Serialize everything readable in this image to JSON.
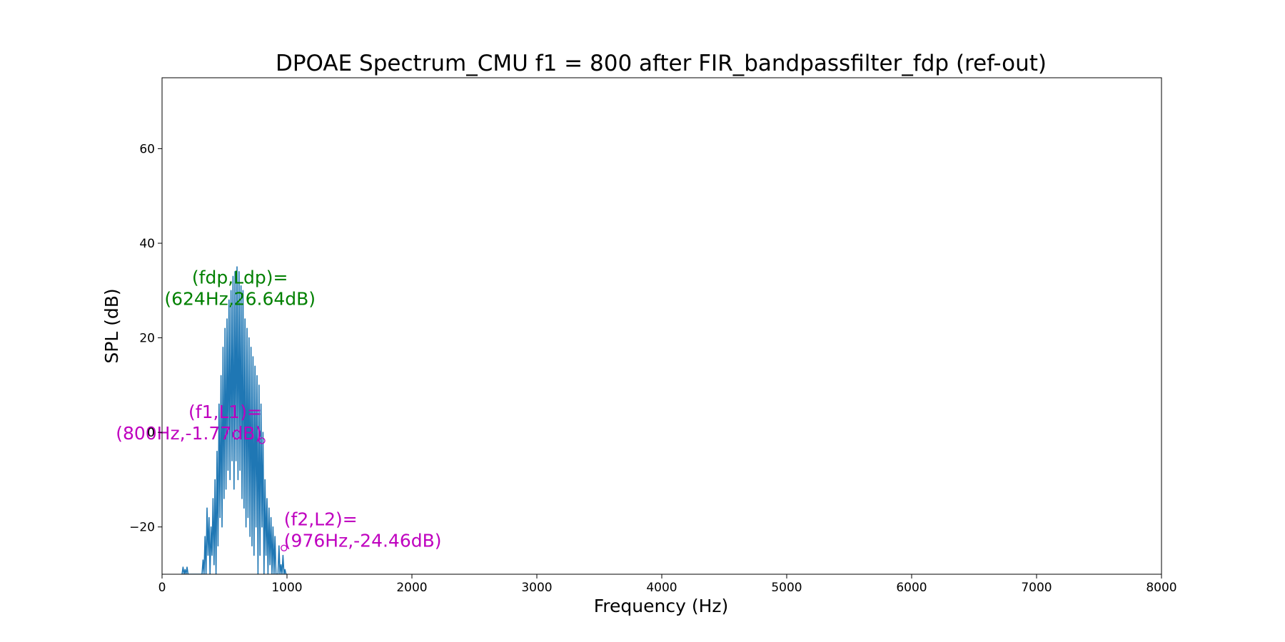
{
  "chart_data": {
    "type": "line",
    "title": "DPOAE Spectrum_CMU f1 = 800 after FIR_bandpassfilter_fdp (ref-out)",
    "xlabel": "Frequency (Hz)",
    "ylabel": "SPL (dB)",
    "xlim": [
      0,
      8000
    ],
    "ylim": [
      -30,
      75
    ],
    "xticks": [
      0,
      1000,
      2000,
      3000,
      4000,
      5000,
      6000,
      7000,
      8000
    ],
    "xtick_labels": [
      "0",
      "1000",
      "2000",
      "3000",
      "4000",
      "5000",
      "6000",
      "7000",
      "8000"
    ],
    "yticks": [
      -20,
      0,
      20,
      40,
      60
    ],
    "ytick_labels": [
      "−20",
      "0",
      "20",
      "40",
      "60"
    ],
    "grid": false,
    "series": [
      {
        "color": "#1f77b4",
        "x": [
          160,
          168,
          176,
          184,
          192,
          200,
          208,
          216,
          224,
          232,
          240,
          248,
          256,
          264,
          272,
          280,
          288,
          296,
          304,
          312,
          320,
          328,
          336,
          344,
          352,
          360,
          368,
          376,
          384,
          392,
          400,
          408,
          416,
          424,
          432,
          440,
          448,
          456,
          464,
          472,
          480,
          488,
          496,
          504,
          512,
          520,
          528,
          536,
          544,
          552,
          560,
          568,
          576,
          584,
          592,
          600,
          608,
          616,
          624,
          632,
          640,
          648,
          656,
          664,
          672,
          680,
          688,
          696,
          704,
          712,
          720,
          728,
          736,
          744,
          752,
          760,
          768,
          776,
          784,
          792,
          800,
          808,
          816,
          824,
          832,
          840,
          848,
          856,
          864,
          872,
          880,
          888,
          896,
          904,
          912,
          920,
          928,
          936,
          944,
          952,
          960,
          968,
          976,
          984,
          992,
          1000
        ],
        "y": [
          -30,
          -28.5,
          -30,
          -29,
          -30,
          -28.5,
          -30,
          -30,
          -30,
          -30,
          -30,
          -30,
          -30,
          -30,
          -30,
          -30,
          -30,
          -30,
          -30,
          -30,
          -30,
          -27,
          -30,
          -22,
          -30,
          -16,
          -26,
          -18,
          -30,
          -20,
          -26,
          -14,
          -28,
          -10,
          -30,
          -4,
          -24,
          6,
          -18,
          12,
          -20,
          18,
          -14,
          22,
          -12,
          24,
          -8,
          28,
          -10,
          30,
          -6,
          33,
          -12,
          34,
          -6,
          35,
          -10,
          34,
          -8,
          31,
          -14,
          30,
          -16,
          24,
          -20,
          22,
          -18,
          20,
          -22,
          18,
          -24,
          16,
          -26,
          14,
          -20,
          12,
          -30,
          10,
          -26,
          6,
          -20,
          0,
          -30,
          -10,
          -26,
          -14,
          -30,
          -16,
          -28,
          -18,
          -30,
          -20,
          -30,
          -22,
          -30,
          -30,
          -30,
          -24,
          -30,
          -28,
          -30,
          -26,
          -30,
          -29,
          -30,
          -30
        ]
      }
    ],
    "annotations": [
      {
        "line1": "(fdp,Ldp)=",
        "line2": "(624Hz,26.64dB)",
        "x": 624,
        "y": 26.64,
        "color": "#008000",
        "marker": false
      },
      {
        "line1": "(f1,L1)=",
        "line2": "(800Hz,-1.77dB)",
        "x": 800,
        "y": -1.77,
        "color": "#bf00bf",
        "marker": true
      },
      {
        "line1": "(f2,L2)=",
        "line2": "(976Hz,-24.46dB)",
        "x": 976,
        "y": -24.46,
        "color": "#bf00bf",
        "marker": true
      }
    ]
  }
}
